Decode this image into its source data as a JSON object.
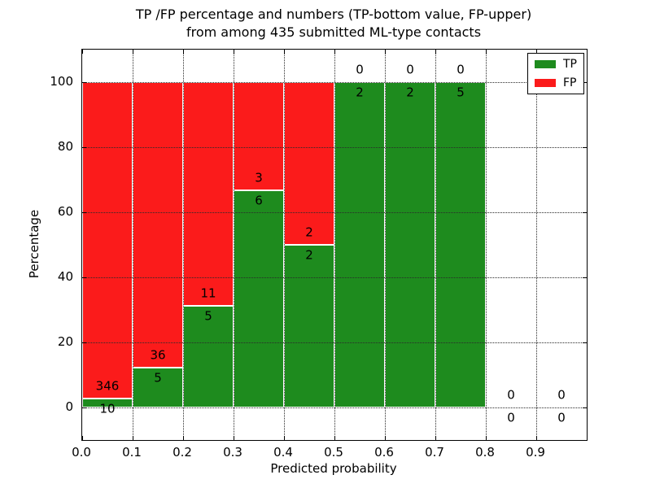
{
  "chart_data": {
    "type": "bar",
    "stacked": true,
    "title_line1": "TP /FP percentage and numbers (TP-bottom value, FP-upper)",
    "title_line2": "from among 435 submitted ML-type contacts",
    "xlabel": "Predicted probability",
    "ylabel": "Percentage",
    "x_tick_labels": [
      "0.0",
      "0.1",
      "0.2",
      "0.3",
      "0.4",
      "0.5",
      "0.6",
      "0.7",
      "0.8",
      "0.9"
    ],
    "y_ticks": [
      0,
      20,
      40,
      60,
      80,
      100
    ],
    "xlim": [
      0.0,
      1.0
    ],
    "ylim": [
      -10,
      110
    ],
    "grid": "dotted",
    "colors": {
      "tp": "#1e8b1e",
      "fp": "#fb1b1b",
      "bar_edge": "#ffffff",
      "grid": "#2a2a2a"
    },
    "legend": {
      "position": "upper-right",
      "entries": [
        {
          "label": "TP",
          "color": "#1e8b1e"
        },
        {
          "label": "FP",
          "color": "#fb1b1b"
        }
      ]
    },
    "bins": [
      {
        "x0": 0.0,
        "x1": 0.1,
        "tp": 10,
        "fp": 346
      },
      {
        "x0": 0.1,
        "x1": 0.2,
        "tp": 5,
        "fp": 36
      },
      {
        "x0": 0.2,
        "x1": 0.3,
        "tp": 5,
        "fp": 11
      },
      {
        "x0": 0.3,
        "x1": 0.4,
        "tp": 6,
        "fp": 3
      },
      {
        "x0": 0.4,
        "x1": 0.5,
        "tp": 2,
        "fp": 2
      },
      {
        "x0": 0.5,
        "x1": 0.6,
        "tp": 2,
        "fp": 0
      },
      {
        "x0": 0.6,
        "x1": 0.7,
        "tp": 2,
        "fp": 0
      },
      {
        "x0": 0.7,
        "x1": 0.8,
        "tp": 5,
        "fp": 0
      },
      {
        "x0": 0.8,
        "x1": 0.9,
        "tp": 0,
        "fp": 0
      },
      {
        "x0": 0.9,
        "x1": 1.0,
        "tp": 0,
        "fp": 0
      }
    ]
  }
}
